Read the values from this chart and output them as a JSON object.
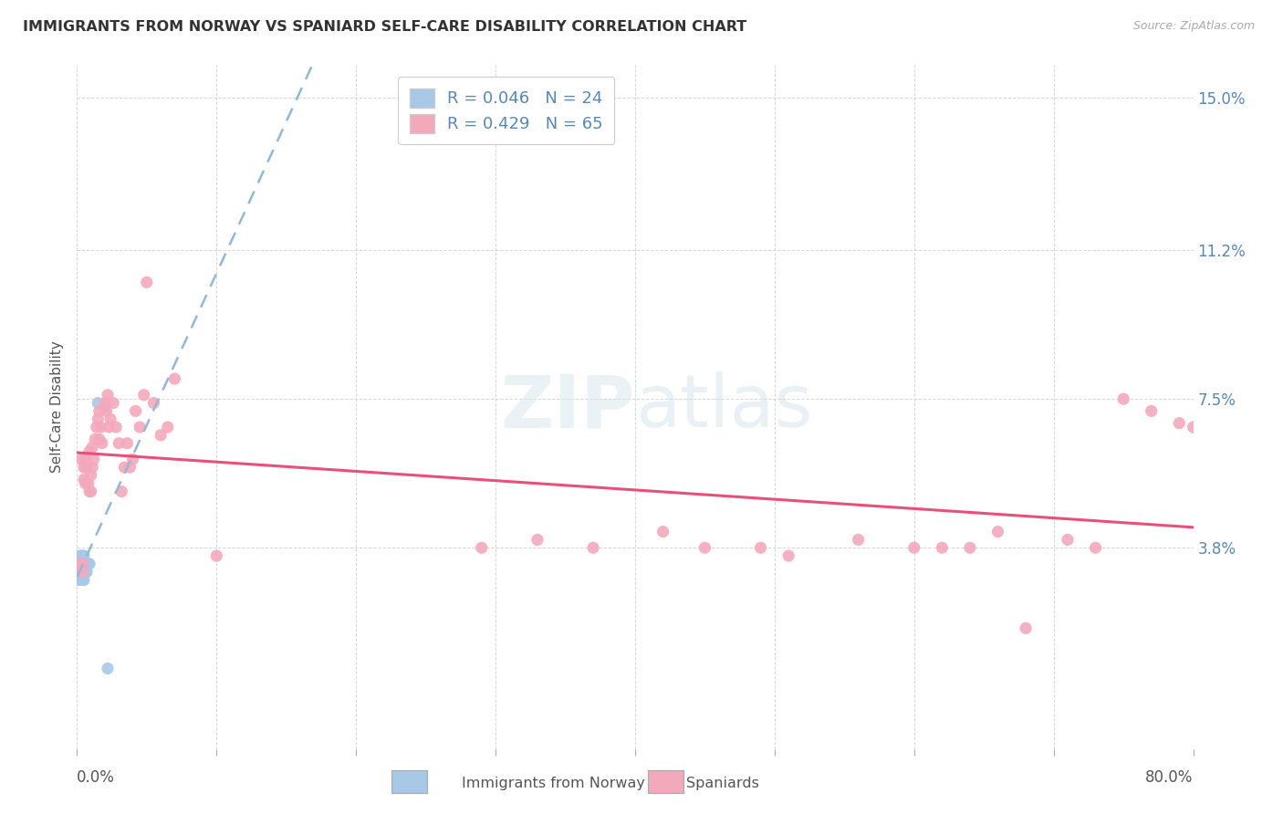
{
  "title": "IMMIGRANTS FROM NORWAY VS SPANIARD SELF-CARE DISABILITY CORRELATION CHART",
  "source": "Source: ZipAtlas.com",
  "ylabel": "Self-Care Disability",
  "xlim": [
    0.0,
    0.8
  ],
  "ylim": [
    -0.012,
    0.158
  ],
  "norway_R": 0.046,
  "norway_N": 24,
  "spaniard_R": 0.429,
  "spaniard_N": 65,
  "norway_color": "#a8c8e8",
  "spaniard_color": "#f4a8bc",
  "norway_line_color": "#90b8d8",
  "spaniard_line_color": "#e8507a",
  "background_color": "#ffffff",
  "norway_x": [
    0.001,
    0.001,
    0.002,
    0.002,
    0.003,
    0.003,
    0.003,
    0.004,
    0.004,
    0.004,
    0.004,
    0.005,
    0.005,
    0.005,
    0.005,
    0.006,
    0.006,
    0.007,
    0.007,
    0.008,
    0.009,
    0.015,
    0.02,
    0.022
  ],
  "norway_y": [
    0.034,
    0.03,
    0.036,
    0.032,
    0.036,
    0.034,
    0.032,
    0.036,
    0.034,
    0.032,
    0.03,
    0.036,
    0.034,
    0.032,
    0.03,
    0.034,
    0.032,
    0.034,
    0.032,
    0.034,
    0.034,
    0.074,
    0.073,
    0.008
  ],
  "spaniard_x": [
    0.002,
    0.003,
    0.004,
    0.004,
    0.005,
    0.005,
    0.006,
    0.006,
    0.007,
    0.008,
    0.009,
    0.009,
    0.01,
    0.01,
    0.011,
    0.011,
    0.012,
    0.013,
    0.014,
    0.015,
    0.016,
    0.016,
    0.017,
    0.018,
    0.02,
    0.021,
    0.022,
    0.023,
    0.024,
    0.026,
    0.028,
    0.03,
    0.032,
    0.034,
    0.036,
    0.038,
    0.04,
    0.042,
    0.045,
    0.048,
    0.05,
    0.055,
    0.06,
    0.065,
    0.07,
    0.1,
    0.29,
    0.33,
    0.37,
    0.42,
    0.45,
    0.49,
    0.51,
    0.56,
    0.6,
    0.62,
    0.64,
    0.66,
    0.68,
    0.71,
    0.73,
    0.75,
    0.77,
    0.79,
    0.8
  ],
  "spaniard_y": [
    0.034,
    0.06,
    0.032,
    0.034,
    0.058,
    0.055,
    0.06,
    0.054,
    0.058,
    0.054,
    0.052,
    0.062,
    0.056,
    0.052,
    0.063,
    0.058,
    0.06,
    0.065,
    0.068,
    0.07,
    0.065,
    0.072,
    0.068,
    0.064,
    0.074,
    0.072,
    0.076,
    0.068,
    0.07,
    0.074,
    0.068,
    0.064,
    0.052,
    0.058,
    0.064,
    0.058,
    0.06,
    0.072,
    0.068,
    0.076,
    0.104,
    0.074,
    0.066,
    0.068,
    0.08,
    0.036,
    0.038,
    0.04,
    0.038,
    0.042,
    0.038,
    0.038,
    0.036,
    0.04,
    0.038,
    0.038,
    0.038,
    0.042,
    0.018,
    0.04,
    0.038,
    0.075,
    0.072,
    0.069,
    0.068
  ],
  "ytick_vals": [
    0.038,
    0.075,
    0.112,
    0.15
  ],
  "ytick_labels": [
    "3.8%",
    "7.5%",
    "11.2%",
    "15.0%"
  ],
  "xtick_vals": [
    0.0,
    0.1,
    0.2,
    0.3,
    0.4,
    0.5,
    0.6,
    0.7,
    0.8
  ]
}
